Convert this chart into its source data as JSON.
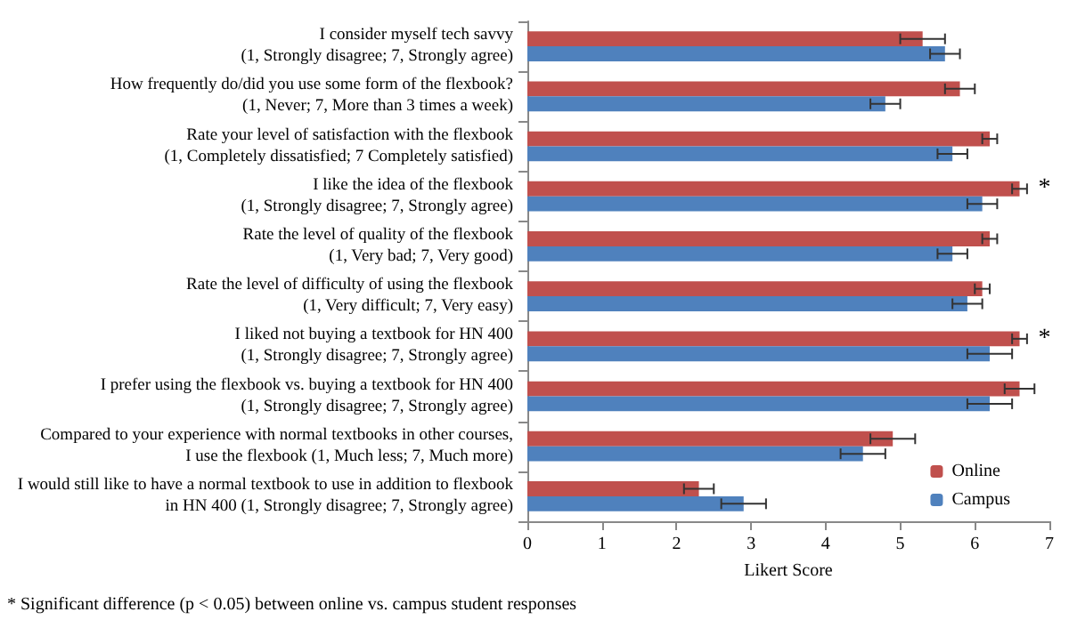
{
  "chart_data": {
    "type": "bar",
    "orientation": "horizontal",
    "xlabel": "Likert Score",
    "categories": [
      "I consider myself tech savvy\n(1, Strongly disagree; 7, Strongly agree)",
      "How frequently do/did you use some form of the flexbook?\n(1, Never; 7, More than 3 times a week)",
      "Rate your level of satisfaction with the flexbook\n(1, Completely dissatisfied; 7 Completely satisfied)",
      "I like the idea of the flexbook\n(1, Strongly disagree; 7, Strongly agree)",
      "Rate the level of quality of the flexbook\n(1, Very bad; 7, Very good)",
      "Rate the level of difficulty of using the flexbook\n(1, Very difficult; 7, Very easy)",
      "I liked not buying a textbook for HN 400\n(1, Strongly disagree; 7, Strongly agree)",
      "I prefer using the flexbook vs. buying a textbook for HN 400\n(1, Strongly disagree; 7, Strongly agree)",
      "Compared to your experience with normal textbooks in other courses,\nI use the flexbook (1, Much less; 7, Much more)",
      "I would still like to have a normal textbook to use in addition to flexbook\nin HN 400 (1, Strongly disagree; 7, Strongly agree)"
    ],
    "series": [
      {
        "name": "Online",
        "color": "#c0504d",
        "values": [
          5.3,
          5.8,
          6.2,
          6.6,
          6.2,
          6.1,
          6.6,
          6.6,
          4.9,
          2.3
        ],
        "errors": [
          0.3,
          0.2,
          0.1,
          0.1,
          0.1,
          0.1,
          0.1,
          0.2,
          0.3,
          0.2
        ]
      },
      {
        "name": "Campus",
        "color": "#4f81bd",
        "values": [
          5.6,
          4.8,
          5.7,
          6.1,
          5.7,
          5.9,
          6.2,
          6.2,
          4.5,
          2.9
        ],
        "errors": [
          0.2,
          0.2,
          0.2,
          0.2,
          0.2,
          0.2,
          0.3,
          0.3,
          0.3,
          0.3
        ]
      }
    ],
    "xlim": [
      0,
      7
    ],
    "xticks": [
      0,
      1,
      2,
      3,
      4,
      5,
      6,
      7
    ],
    "grid": false,
    "legend": "bottom right",
    "annotations": [
      {
        "text": "*",
        "x": 6.6,
        "y": "I like the idea of the flexbook\n(1, Strongly disagree; 7, Strongly agree)"
      },
      {
        "text": "*",
        "x": 6.6,
        "y": "I liked not buying a textbook for HN 400\n(1, Strongly disagree; 7, Strongly agree)"
      },
      "* Significant difference (p < 0.05) between online vs. campus student responses"
    ]
  }
}
